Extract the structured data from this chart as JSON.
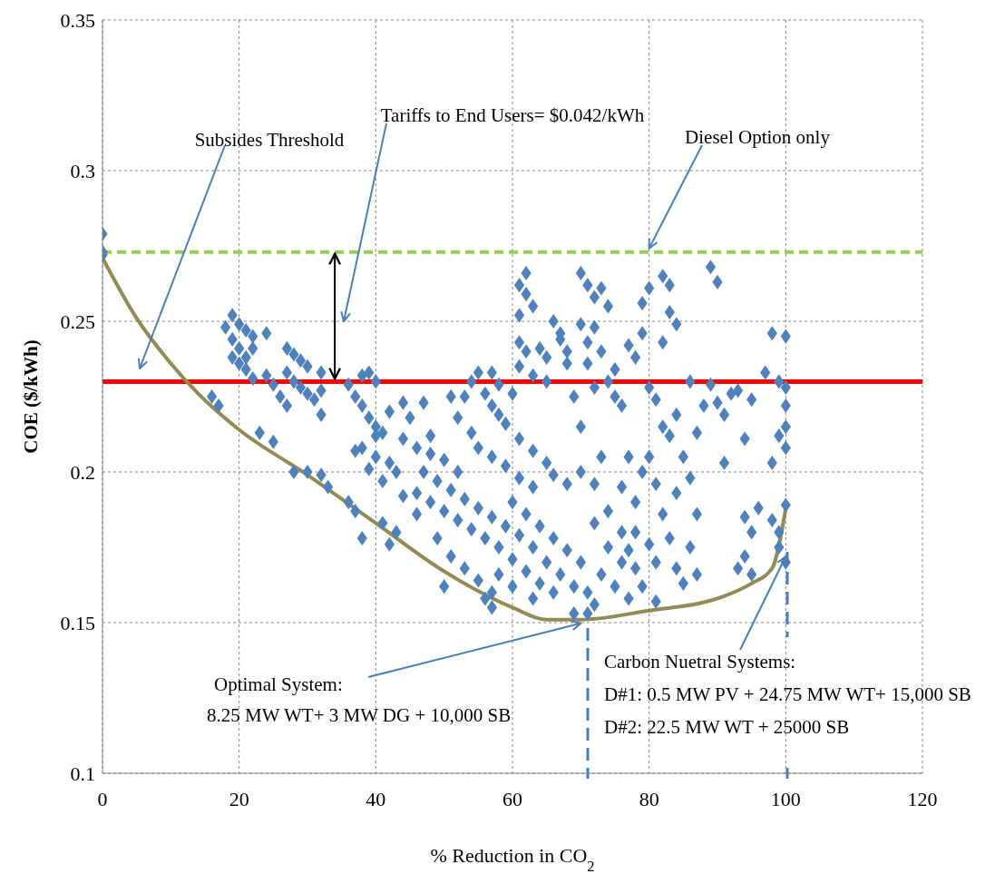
{
  "chart_data": {
    "type": "scatter",
    "xlabel": "% Reduction in CO$_{2}$",
    "ylabel": "COE ($/kWh)",
    "xlim": [
      0,
      120
    ],
    "xticks": [
      0,
      20,
      40,
      60,
      80,
      100,
      120
    ],
    "ylim": [
      0.1,
      0.35
    ],
    "yticks": [
      0.1,
      0.15,
      0.2,
      0.25,
      0.3,
      0.35
    ],
    "grid": true,
    "marker": "diamond",
    "series": [
      {
        "color": "#4f81bd",
        "x": [
          0,
          0,
          0,
          16,
          17,
          18,
          19,
          20,
          21,
          19,
          20,
          21,
          19,
          20,
          21,
          22,
          24,
          22,
          22,
          24,
          25,
          26,
          27,
          27,
          28,
          29,
          30,
          27,
          28,
          29,
          30,
          31,
          32,
          32,
          32,
          23,
          25,
          28,
          30,
          32,
          36,
          37,
          33,
          36,
          37,
          38,
          39,
          40,
          38,
          39,
          40,
          41,
          38,
          40,
          42,
          43,
          37,
          39,
          41,
          40,
          42,
          44,
          45,
          47,
          44,
          46,
          48,
          50,
          52,
          47,
          49,
          51,
          53,
          55,
          57,
          46,
          48,
          50,
          52,
          54,
          56,
          58,
          60,
          44,
          46,
          43,
          42,
          38,
          41,
          49,
          51,
          53,
          55,
          57,
          50,
          56,
          57,
          59,
          53,
          54,
          55,
          57,
          56,
          57,
          58,
          59,
          60,
          58,
          52,
          54,
          51,
          48,
          55,
          57,
          59,
          61,
          63,
          61,
          62,
          62,
          63,
          61,
          61,
          62,
          64,
          65,
          67,
          68,
          63,
          65,
          61,
          70,
          71,
          72,
          73,
          74,
          70,
          72,
          71,
          73,
          66,
          67,
          68,
          61,
          63,
          65,
          66,
          68,
          60,
          62,
          64,
          66,
          68,
          70,
          61,
          63,
          65,
          67,
          69,
          71,
          72,
          62,
          64,
          66,
          71,
          73,
          75,
          74,
          76,
          72,
          74,
          76,
          77,
          78,
          79,
          78,
          80,
          70,
          72,
          73,
          70,
          72,
          74,
          75,
          76,
          69,
          71,
          75,
          77,
          78,
          79,
          80,
          79,
          82,
          82,
          83,
          83,
          84,
          80,
          81,
          82,
          84,
          83,
          80,
          81,
          82,
          84,
          85,
          86,
          87,
          88,
          89,
          90,
          86,
          89,
          90,
          91,
          92,
          91,
          93,
          94,
          95,
          97,
          98,
          100,
          99,
          100,
          100,
          100,
          100,
          99,
          98,
          81,
          83,
          84,
          86,
          87,
          85,
          87,
          94,
          95,
          94,
          93,
          95,
          96,
          98,
          99,
          100,
          99,
          100,
          76,
          78,
          77,
          79,
          81,
          77,
          69,
          63,
          60,
          58
        ],
        "values": [
          0.279,
          0.272,
          0.273,
          0.225,
          0.222,
          0.248,
          0.252,
          0.249,
          0.247,
          0.244,
          0.241,
          0.238,
          0.238,
          0.236,
          0.234,
          0.245,
          0.246,
          0.241,
          0.231,
          0.232,
          0.229,
          0.225,
          0.222,
          0.241,
          0.239,
          0.237,
          0.235,
          0.233,
          0.23,
          0.228,
          0.226,
          0.224,
          0.233,
          0.227,
          0.219,
          0.213,
          0.21,
          0.2,
          0.2,
          0.199,
          0.19,
          0.187,
          0.195,
          0.229,
          0.225,
          0.232,
          0.233,
          0.23,
          0.222,
          0.218,
          0.215,
          0.213,
          0.208,
          0.205,
          0.203,
          0.2,
          0.207,
          0.201,
          0.197,
          0.212,
          0.22,
          0.223,
          0.218,
          0.223,
          0.211,
          0.208,
          0.206,
          0.204,
          0.2,
          0.2,
          0.197,
          0.194,
          0.191,
          0.188,
          0.185,
          0.193,
          0.19,
          0.187,
          0.184,
          0.181,
          0.178,
          0.175,
          0.171,
          0.192,
          0.186,
          0.18,
          0.176,
          0.178,
          0.183,
          0.178,
          0.172,
          0.168,
          0.164,
          0.16,
          0.162,
          0.158,
          0.155,
          0.182,
          0.225,
          0.23,
          0.233,
          0.233,
          0.226,
          0.222,
          0.219,
          0.216,
          0.226,
          0.229,
          0.218,
          0.213,
          0.225,
          0.212,
          0.208,
          0.205,
          0.202,
          0.198,
          0.195,
          0.262,
          0.266,
          0.259,
          0.255,
          0.252,
          0.243,
          0.24,
          0.241,
          0.238,
          0.244,
          0.24,
          0.232,
          0.23,
          0.235,
          0.266,
          0.262,
          0.258,
          0.261,
          0.255,
          0.249,
          0.248,
          0.243,
          0.24,
          0.25,
          0.246,
          0.236,
          0.211,
          0.207,
          0.203,
          0.199,
          0.196,
          0.19,
          0.186,
          0.182,
          0.178,
          0.174,
          0.17,
          0.179,
          0.175,
          0.17,
          0.166,
          0.162,
          0.16,
          0.156,
          0.167,
          0.163,
          0.16,
          0.153,
          0.166,
          0.162,
          0.175,
          0.17,
          0.183,
          0.187,
          0.18,
          0.174,
          0.168,
          0.162,
          0.18,
          0.176,
          0.2,
          0.196,
          0.205,
          0.215,
          0.228,
          0.23,
          0.225,
          0.222,
          0.225,
          0.236,
          0.234,
          0.242,
          0.238,
          0.256,
          0.261,
          0.246,
          0.243,
          0.265,
          0.262,
          0.253,
          0.249,
          0.228,
          0.224,
          0.215,
          0.219,
          0.212,
          0.205,
          0.196,
          0.186,
          0.193,
          0.205,
          0.198,
          0.213,
          0.222,
          0.268,
          0.263,
          0.23,
          0.229,
          0.223,
          0.219,
          0.226,
          0.203,
          0.227,
          0.211,
          0.224,
          0.233,
          0.246,
          0.245,
          0.23,
          0.228,
          0.222,
          0.215,
          0.208,
          0.212,
          0.203,
          0.17,
          0.178,
          0.168,
          0.175,
          0.186,
          0.163,
          0.166,
          0.185,
          0.18,
          0.172,
          0.168,
          0.166,
          0.188,
          0.184,
          0.18,
          0.189,
          0.175,
          0.17,
          0.195,
          0.19,
          0.205,
          0.2,
          0.157,
          0.158,
          0.153,
          0.158,
          0.162,
          0.166
        ]
      },
      {
        "type": "line",
        "color": "#948a54",
        "marker": "none",
        "x": [
          0,
          5,
          10,
          14,
          20,
          30,
          40,
          50,
          60,
          65,
          70,
          80,
          90,
          95,
          98,
          100
        ],
        "values": [
          0.271,
          0.251,
          0.236,
          0.226,
          0.214,
          0.199,
          0.183,
          0.167,
          0.155,
          0.151,
          0.151,
          0.154,
          0.158,
          0.163,
          0.168,
          0.188
        ]
      }
    ],
    "ref_lines": [
      {
        "axis": "y",
        "value": 0.23,
        "color": "#ff0000",
        "line_style": "solid"
      },
      {
        "axis": "y",
        "value": 0.273,
        "color": "#92d050",
        "line_style": "dashed"
      }
    ],
    "annotations": [
      "Subsides Threshold",
      "Tariffs to End Users= $0.042/kWh",
      {
        "text": "Diesel Option only",
        "x": 80,
        "y": 0.273
      },
      {
        "text": "Optimal System:\n8.25 MW WT+ 3 MW DG + 10,000 SB",
        "x": 70,
        "y": 0.151
      },
      {
        "text": "Carbon Nuetral Systems:\nD#1: 0.5 MW PV + 24.75 MW WT+ 15,000 SB\nD#2: 22.5 MW WT + 25000 SB",
        "x": 100,
        "y": 0.172
      }
    ]
  }
}
